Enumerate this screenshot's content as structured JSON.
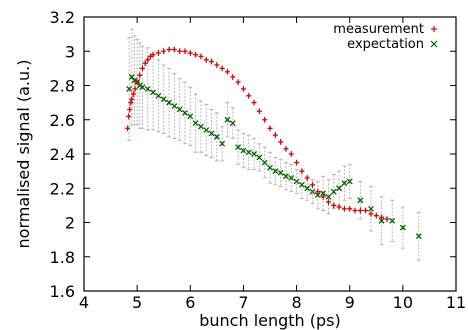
{
  "chart_data": {
    "type": "scatter",
    "xlabel": "bunch length (ps)",
    "ylabel": "normalised signal (a.u.)",
    "xlim": [
      4,
      11
    ],
    "ylim": [
      1.6,
      3.2
    ],
    "xticks": [
      "4",
      "5",
      "6",
      "7",
      "8",
      "9",
      "10",
      "11"
    ],
    "yticks": [
      "1.6",
      "1.8",
      "2",
      "2.2",
      "2.4",
      "2.6",
      "2.8",
      "3",
      "3.2"
    ],
    "grid": false,
    "legend_position": "top-right",
    "colors": {
      "measurement": "#e00000",
      "expectation": "#006400",
      "errorbar": "#b0b0b0"
    },
    "series": [
      {
        "name": "measurement",
        "marker": "plus",
        "points": [
          [
            4.82,
            2.55
          ],
          [
            4.84,
            2.62
          ],
          [
            4.86,
            2.66
          ],
          [
            4.88,
            2.7
          ],
          [
            4.9,
            2.72
          ],
          [
            4.93,
            2.75
          ],
          [
            4.96,
            2.78
          ],
          [
            5.0,
            2.82
          ],
          [
            5.05,
            2.86
          ],
          [
            5.1,
            2.9
          ],
          [
            5.15,
            2.93
          ],
          [
            5.2,
            2.95
          ],
          [
            5.25,
            2.97
          ],
          [
            5.3,
            2.98
          ],
          [
            5.4,
            2.99
          ],
          [
            5.5,
            3.0
          ],
          [
            5.6,
            3.01
          ],
          [
            5.7,
            3.01
          ],
          [
            5.8,
            3.0
          ],
          [
            5.9,
            3.0
          ],
          [
            6.0,
            2.99
          ],
          [
            6.1,
            2.98
          ],
          [
            6.2,
            2.97
          ],
          [
            6.3,
            2.95
          ],
          [
            6.4,
            2.94
          ],
          [
            6.5,
            2.92
          ],
          [
            6.6,
            2.9
          ],
          [
            6.7,
            2.88
          ],
          [
            6.8,
            2.85
          ],
          [
            6.9,
            2.82
          ],
          [
            7.0,
            2.78
          ],
          [
            7.1,
            2.74
          ],
          [
            7.2,
            2.7
          ],
          [
            7.3,
            2.65
          ],
          [
            7.4,
            2.6
          ],
          [
            7.5,
            2.55
          ],
          [
            7.6,
            2.51
          ],
          [
            7.7,
            2.47
          ],
          [
            7.8,
            2.43
          ],
          [
            7.9,
            2.4
          ],
          [
            8.0,
            2.35
          ],
          [
            8.1,
            2.3
          ],
          [
            8.2,
            2.26
          ],
          [
            8.3,
            2.22
          ],
          [
            8.4,
            2.18
          ],
          [
            8.5,
            2.15
          ],
          [
            8.6,
            2.12
          ],
          [
            8.7,
            2.1
          ],
          [
            8.8,
            2.09
          ],
          [
            8.9,
            2.08
          ],
          [
            9.0,
            2.08
          ],
          [
            9.1,
            2.07
          ],
          [
            9.2,
            2.07
          ],
          [
            9.3,
            2.07
          ],
          [
            9.4,
            2.05
          ],
          [
            9.5,
            2.04
          ],
          [
            9.6,
            2.03
          ],
          [
            9.7,
            2.02
          ]
        ]
      },
      {
        "name": "expectation",
        "marker": "cross",
        "points": [
          [
            4.85,
            2.78,
            0.3
          ],
          [
            4.9,
            2.85,
            0.28
          ],
          [
            4.95,
            2.83,
            0.26
          ],
          [
            5.0,
            2.82,
            0.25
          ],
          [
            5.05,
            2.8,
            0.25
          ],
          [
            5.1,
            2.79,
            0.24
          ],
          [
            5.2,
            2.78,
            0.24
          ],
          [
            5.3,
            2.76,
            0.22
          ],
          [
            5.4,
            2.74,
            0.21
          ],
          [
            5.5,
            2.72,
            0.2
          ],
          [
            5.6,
            2.7,
            0.2
          ],
          [
            5.7,
            2.68,
            0.19
          ],
          [
            5.8,
            2.66,
            0.18
          ],
          [
            5.9,
            2.64,
            0.18
          ],
          [
            6.0,
            2.62,
            0.17
          ],
          [
            6.1,
            2.58,
            0.17
          ],
          [
            6.2,
            2.56,
            0.15
          ],
          [
            6.3,
            2.54,
            0.15
          ],
          [
            6.4,
            2.52,
            0.14
          ],
          [
            6.5,
            2.5,
            0.14
          ],
          [
            6.6,
            2.46,
            0.1
          ],
          [
            6.7,
            2.6,
            0.1
          ],
          [
            6.8,
            2.58,
            0.09
          ],
          [
            6.9,
            2.44,
            0.1
          ],
          [
            7.0,
            2.42,
            0.1
          ],
          [
            7.1,
            2.41,
            0.1
          ],
          [
            7.2,
            2.4,
            0.09
          ],
          [
            7.3,
            2.38,
            0.08
          ],
          [
            7.4,
            2.35,
            0.09
          ],
          [
            7.5,
            2.32,
            0.09
          ],
          [
            7.6,
            2.3,
            0.08
          ],
          [
            7.7,
            2.29,
            0.08
          ],
          [
            7.8,
            2.27,
            0.08
          ],
          [
            7.9,
            2.26,
            0.08
          ],
          [
            8.0,
            2.24,
            0.07
          ],
          [
            8.1,
            2.22,
            0.08
          ],
          [
            8.2,
            2.2,
            0.07
          ],
          [
            8.3,
            2.18,
            0.07
          ],
          [
            8.4,
            2.16,
            0.08
          ],
          [
            8.5,
            2.17,
            0.1
          ],
          [
            8.6,
            2.15,
            0.1
          ],
          [
            8.7,
            2.18,
            0.1
          ],
          [
            8.8,
            2.2,
            0.1
          ],
          [
            8.9,
            2.23,
            0.1
          ],
          [
            9.0,
            2.24,
            0.1
          ],
          [
            9.2,
            2.13,
            0.11
          ],
          [
            9.4,
            2.08,
            0.13
          ],
          [
            9.6,
            2.01,
            0.14
          ],
          [
            9.8,
            2.01,
            0.12
          ],
          [
            10.0,
            1.97,
            0.12
          ],
          [
            10.3,
            1.92,
            0.14
          ]
        ]
      }
    ]
  }
}
